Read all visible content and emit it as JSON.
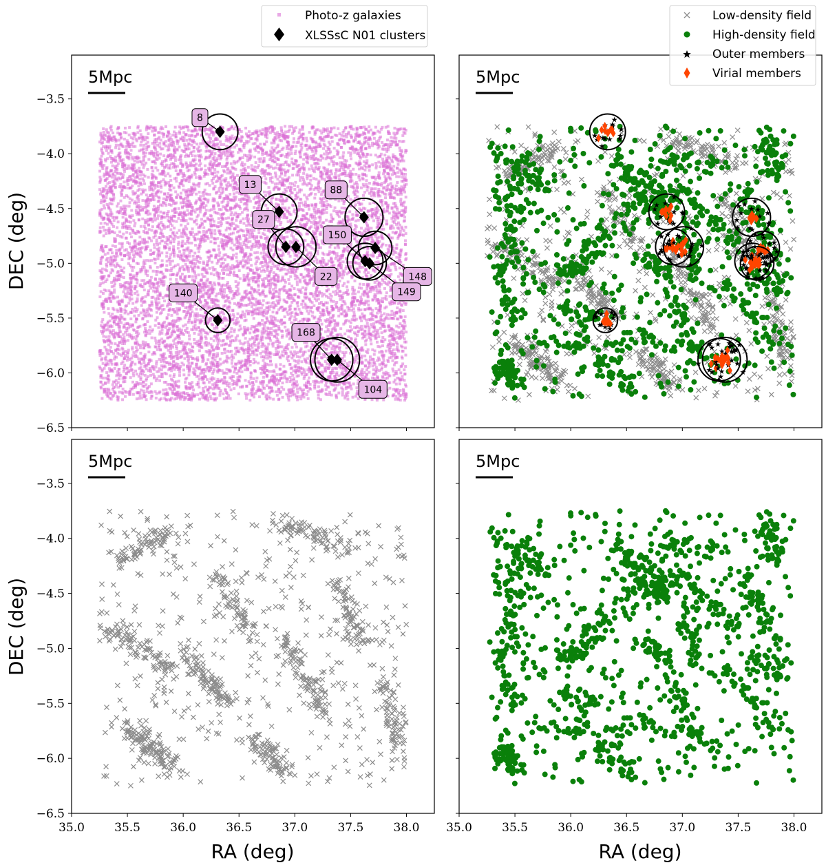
{
  "chart_data": [
    {
      "panel": "top-left",
      "type": "scatter",
      "xlabel": "",
      "ylabel": "DEC (deg)",
      "xlim": [
        35.0,
        38.25
      ],
      "ylim": [
        -6.5,
        -3.1
      ],
      "xticks": [],
      "yticks": [
        "-3.5",
        "-4.0",
        "-4.5",
        "-5.0",
        "-5.5",
        "-6.0",
        "-6.5"
      ],
      "scale_bar": "5Mpc",
      "legend": {
        "position": "above panel",
        "entries": [
          {
            "label": "Photo-z galaxies",
            "color": "#DA70D6",
            "marker": "square"
          },
          {
            "label": "XLSSsC N01 clusters",
            "color": "#000000",
            "marker": "diamond"
          }
        ]
      },
      "series": [
        {
          "name": "Photo-z galaxies",
          "color": "#DA70D6",
          "marker": "square",
          "distribution": "uniform",
          "x_range": [
            35.25,
            38.0
          ],
          "y_range": [
            -6.25,
            -3.75
          ],
          "approx_count": 9000
        },
        {
          "name": "XLSSsC N01 clusters",
          "color": "#000000",
          "marker": "diamond"
        }
      ],
      "clusters": [
        {
          "id": "8",
          "ra": 36.33,
          "dec": -3.8,
          "radius_deg": 0.16
        },
        {
          "id": "13",
          "ra": 36.86,
          "dec": -4.53,
          "radius_deg": 0.16
        },
        {
          "id": "27",
          "ra": 36.92,
          "dec": -4.85,
          "radius_deg": 0.16
        },
        {
          "id": "22",
          "ra": 37.01,
          "dec": -4.85,
          "radius_deg": 0.18
        },
        {
          "id": "88",
          "ra": 37.62,
          "dec": -4.58,
          "radius_deg": 0.17
        },
        {
          "id": "150",
          "ra": 37.63,
          "dec": -4.98,
          "radius_deg": 0.16
        },
        {
          "id": "148",
          "ra": 37.72,
          "dec": -4.86,
          "radius_deg": 0.15
        },
        {
          "id": "149",
          "ra": 37.67,
          "dec": -5.0,
          "radius_deg": 0.15
        },
        {
          "id": "140",
          "ra": 36.31,
          "dec": -5.52,
          "radius_deg": 0.11
        },
        {
          "id": "168",
          "ra": 37.33,
          "dec": -5.88,
          "radius_deg": 0.19
        },
        {
          "id": "104",
          "ra": 37.38,
          "dec": -5.88,
          "radius_deg": 0.2
        }
      ],
      "cluster_labels": [
        {
          "text": "8",
          "box": [
            36.15,
            -3.67
          ],
          "arrow_to": [
            36.33,
            -3.8
          ]
        },
        {
          "text": "13",
          "box": [
            36.6,
            -4.28
          ],
          "arrow_to": [
            36.86,
            -4.53
          ]
        },
        {
          "text": "27",
          "box": [
            36.72,
            -4.6
          ],
          "arrow_to": [
            36.92,
            -4.85
          ]
        },
        {
          "text": "22",
          "box": [
            37.28,
            -5.12
          ],
          "arrow_to": [
            37.01,
            -4.85
          ]
        },
        {
          "text": "88",
          "box": [
            37.37,
            -4.33
          ],
          "arrow_to": [
            37.62,
            -4.58
          ]
        },
        {
          "text": "150",
          "box": [
            37.38,
            -4.74
          ],
          "arrow_to": [
            37.63,
            -4.98
          ]
        },
        {
          "text": "148",
          "box": [
            38.1,
            -5.12
          ],
          "arrow_to": [
            37.72,
            -4.86
          ]
        },
        {
          "text": "149",
          "box": [
            38.0,
            -5.26
          ],
          "arrow_to": [
            37.67,
            -5.0
          ]
        },
        {
          "text": "140",
          "box": [
            36.0,
            -5.27
          ],
          "arrow_to": [
            36.31,
            -5.52
          ]
        },
        {
          "text": "168",
          "box": [
            37.1,
            -5.63
          ],
          "arrow_to": [
            37.33,
            -5.88
          ]
        },
        {
          "text": "104",
          "box": [
            37.7,
            -6.15
          ],
          "arrow_to": [
            37.38,
            -5.88
          ]
        }
      ]
    },
    {
      "panel": "top-right",
      "type": "scatter",
      "xlabel": "",
      "ylabel": "",
      "xlim": [
        35.0,
        38.25
      ],
      "ylim": [
        -6.5,
        -3.1
      ],
      "scale_bar": "5Mpc",
      "legend": {
        "position": "top-right",
        "entries": [
          {
            "label": "Low-density field",
            "color": "#8C8C8C",
            "marker": "x"
          },
          {
            "label": "High-density field",
            "color": "#0A800A",
            "marker": "circle"
          },
          {
            "label": "Outer members",
            "color": "#000000",
            "marker": "star"
          },
          {
            "label": "Virial members",
            "color": "#FF4500",
            "marker": "thin-diamond"
          }
        ]
      },
      "series": [
        {
          "name": "Low-density field",
          "color": "#8C8C8C",
          "marker": "x",
          "approx_count": 1300
        },
        {
          "name": "High-density field",
          "color": "#0A800A",
          "marker": "circle",
          "approx_count": 1300
        },
        {
          "name": "Outer members",
          "color": "#000000",
          "marker": "star"
        },
        {
          "name": "Virial members",
          "color": "#FF4500",
          "marker": "thin-diamond"
        }
      ],
      "clusters": [
        {
          "ra": 36.33,
          "dec": -3.8,
          "radius_deg": 0.16
        },
        {
          "ra": 36.86,
          "dec": -4.53,
          "radius_deg": 0.16
        },
        {
          "ra": 36.92,
          "dec": -4.85,
          "radius_deg": 0.16
        },
        {
          "ra": 37.01,
          "dec": -4.85,
          "radius_deg": 0.18
        },
        {
          "ra": 37.62,
          "dec": -4.58,
          "radius_deg": 0.17
        },
        {
          "ra": 37.63,
          "dec": -4.98,
          "radius_deg": 0.16
        },
        {
          "ra": 37.72,
          "dec": -4.86,
          "radius_deg": 0.15
        },
        {
          "ra": 37.67,
          "dec": -5.0,
          "radius_deg": 0.15
        },
        {
          "ra": 36.31,
          "dec": -5.52,
          "radius_deg": 0.11
        },
        {
          "ra": 37.33,
          "dec": -5.88,
          "radius_deg": 0.19
        },
        {
          "ra": 37.38,
          "dec": -5.88,
          "radius_deg": 0.2
        }
      ]
    },
    {
      "panel": "bottom-left",
      "type": "scatter",
      "xlabel": "RA (deg)",
      "ylabel": "DEC (deg)",
      "xlim": [
        35.0,
        38.25
      ],
      "ylim": [
        -6.5,
        -3.1
      ],
      "xticks": [
        "35.0",
        "35.5",
        "36.0",
        "36.5",
        "37.0",
        "37.5",
        "38.0"
      ],
      "yticks": [
        "-3.5",
        "-4.0",
        "-4.5",
        "-5.0",
        "-5.5",
        "-6.0",
        "-6.5"
      ],
      "scale_bar": "5Mpc",
      "series": [
        {
          "name": "Low-density field",
          "color": "#8C8C8C",
          "marker": "x",
          "approx_count": 1300
        }
      ]
    },
    {
      "panel": "bottom-right",
      "type": "scatter",
      "xlabel": "RA (deg)",
      "ylabel": "",
      "xlim": [
        35.0,
        38.25
      ],
      "ylim": [
        -6.5,
        -3.1
      ],
      "xticks": [
        "35.0",
        "35.5",
        "36.0",
        "36.5",
        "37.0",
        "37.5",
        "38.0"
      ],
      "scale_bar": "5Mpc",
      "series": [
        {
          "name": "High-density field",
          "color": "#0A800A",
          "marker": "circle",
          "approx_count": 1300
        }
      ]
    }
  ]
}
